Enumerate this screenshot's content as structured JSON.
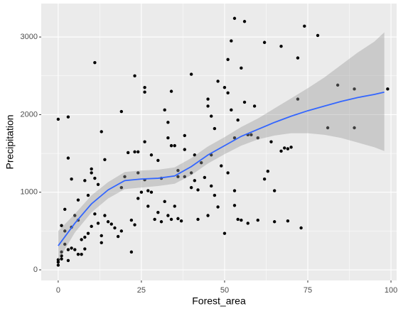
{
  "chart_data": {
    "type": "scatter",
    "x_label": "Forest_area",
    "y_label": "Precipitation",
    "xlim": [
      -5.1,
      101.7
    ],
    "ylim": [
      -137,
      3431
    ],
    "xticks": [
      0,
      25,
      50,
      75,
      100
    ],
    "yticks": [
      0,
      1000,
      2000,
      3000
    ],
    "xminor": [
      12.5,
      37.5,
      62.5,
      87.5
    ],
    "yminor": [
      500,
      1500,
      2500
    ],
    "grid": true,
    "background": "#ebebeb",
    "points": {
      "color": "#000000",
      "x": [
        0,
        3,
        3,
        4,
        11,
        10,
        10,
        11,
        12,
        13,
        14,
        19,
        21,
        23,
        23,
        24,
        26,
        26,
        26,
        28,
        30,
        32,
        33,
        33,
        34,
        34,
        35,
        38,
        38,
        40,
        41,
        40,
        43,
        45,
        45,
        46,
        46,
        47,
        48,
        50,
        51,
        51,
        52,
        52,
        53,
        53,
        53,
        54,
        55,
        56,
        56,
        57,
        58,
        59,
        60,
        62,
        62,
        63,
        64,
        65,
        67,
        67,
        68,
        69,
        70,
        72,
        72,
        73,
        74,
        78,
        81,
        84,
        89,
        89,
        99,
        69,
        60,
        55,
        54,
        50,
        48,
        47,
        46,
        44,
        42,
        41,
        40,
        38,
        37,
        36,
        35,
        34,
        33,
        32,
        31,
        30,
        29,
        28,
        27,
        26,
        25,
        24,
        23,
        22,
        22,
        20,
        19,
        18,
        17,
        16,
        15,
        14,
        13,
        12,
        11,
        10,
        9,
        9,
        8,
        8,
        7,
        7,
        6,
        6,
        5,
        4,
        4,
        3,
        2,
        2,
        2,
        1,
        1,
        0,
        0,
        0,
        1,
        1,
        3,
        5,
        6,
        13,
        24,
        45,
        57,
        65,
        36,
        31,
        19,
        8,
        42,
        27,
        53,
        49,
        36,
        51
      ],
      "y": [
        1940,
        1970,
        1440,
        1170,
        2670,
        1300,
        1250,
        1180,
        1100,
        1780,
        1420,
        2040,
        1510,
        2500,
        1520,
        1520,
        2350,
        2290,
        1650,
        1480,
        1410,
        2060,
        1900,
        1700,
        2300,
        1600,
        1600,
        1730,
        1550,
        2520,
        1480,
        1250,
        1380,
        2200,
        2110,
        1980,
        1480,
        1820,
        2430,
        2350,
        2710,
        2280,
        2950,
        2060,
        3240,
        1700,
        1020,
        1930,
        2600,
        3200,
        2160,
        1740,
        1740,
        2110,
        1700,
        2930,
        1170,
        1270,
        1650,
        1020,
        2880,
        1530,
        1570,
        1560,
        1580,
        2730,
        2200,
        540,
        3140,
        3020,
        1830,
        2380,
        2330,
        1830,
        2330,
        630,
        640,
        640,
        650,
        470,
        810,
        960,
        1080,
        1190,
        1030,
        1150,
        1060,
        1200,
        630,
        660,
        820,
        650,
        700,
        880,
        620,
        740,
        650,
        1000,
        1020,
        1160,
        1000,
        920,
        580,
        640,
        230,
        1200,
        500,
        430,
        540,
        590,
        620,
        700,
        440,
        600,
        720,
        560,
        960,
        470,
        420,
        270,
        200,
        390,
        900,
        640,
        700,
        550,
        280,
        120,
        780,
        500,
        330,
        230,
        140,
        60,
        100,
        130,
        180,
        570,
        260,
        260,
        200,
        350,
        1250,
        700,
        600,
        620,
        1200,
        1180,
        1060,
        1150,
        650,
        820,
        830,
        1340,
        1280,
        1250
      ]
    },
    "smooth": {
      "color": "#3366ff",
      "band_color": "#999999",
      "x": [
        0,
        5,
        10,
        15,
        20,
        25,
        30,
        35,
        40,
        45,
        50,
        55,
        60,
        65,
        70,
        75,
        80,
        85,
        90,
        95,
        98
      ],
      "y": [
        310,
        600,
        850,
        1030,
        1150,
        1170,
        1180,
        1210,
        1330,
        1480,
        1600,
        1720,
        1810,
        1900,
        1980,
        2050,
        2110,
        2170,
        2220,
        2260,
        2290
      ],
      "lower": [
        120,
        480,
        740,
        920,
        1040,
        1060,
        1080,
        1110,
        1220,
        1370,
        1490,
        1600,
        1680,
        1730,
        1760,
        1760,
        1740,
        1700,
        1640,
        1580,
        1530
      ],
      "upper": [
        500,
        720,
        960,
        1130,
        1260,
        1280,
        1290,
        1320,
        1440,
        1590,
        1710,
        1840,
        1950,
        2080,
        2210,
        2340,
        2480,
        2640,
        2800,
        2940,
        3060
      ]
    }
  }
}
